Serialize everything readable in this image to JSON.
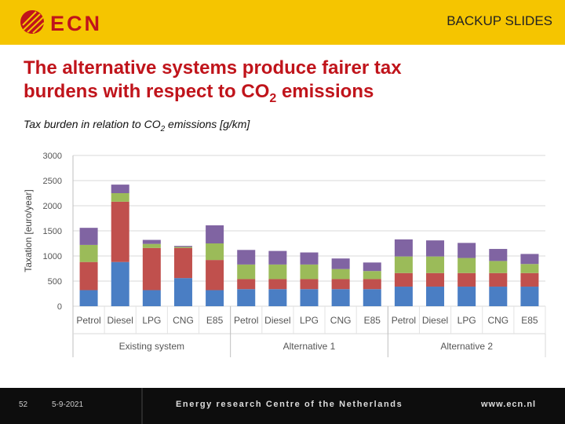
{
  "header": {
    "backup_label": "BACKUP SLIDES",
    "logo_text": "ECN"
  },
  "slide": {
    "title_line1": "The alternative systems produce fairer tax",
    "title_line2_pre": "burdens with respect to CO",
    "title_line2_sub": "2",
    "title_line2_post": " emissions",
    "subtitle_pre": "Tax burden in relation to CO",
    "subtitle_sub": "2",
    "subtitle_post": " emissions [g/km]"
  },
  "colors": {
    "blue": "#4a7ec4",
    "red": "#c0504d",
    "green": "#9bbb59",
    "purple": "#8064a2",
    "header": "#f5c500",
    "title": "#c0141b"
  },
  "chart_data": {
    "type": "bar",
    "stacked": true,
    "ylabel": "Taxation [euro/year]",
    "ylim": [
      0,
      3000
    ],
    "yticks": [
      0,
      500,
      1000,
      1500,
      2000,
      2500,
      3000
    ],
    "groups": [
      {
        "name": "Existing system",
        "categories": [
          "Petrol",
          "Diesel",
          "LPG",
          "CNG",
          "E85"
        ]
      },
      {
        "name": "Alternative 1",
        "categories": [
          "Petrol",
          "Diesel",
          "LPG",
          "CNG",
          "E85"
        ]
      },
      {
        "name": "Alternative 2",
        "categories": [
          "Petrol",
          "Diesel",
          "LPG",
          "CNG",
          "E85"
        ]
      }
    ],
    "series": [
      {
        "name": "blue",
        "color": "#4a7ec4",
        "values": [
          320,
          880,
          320,
          560,
          320,
          340,
          340,
          340,
          340,
          340,
          390,
          390,
          390,
          390,
          390
        ]
      },
      {
        "name": "red",
        "color": "#c0504d",
        "values": [
          560,
          1200,
          840,
          600,
          600,
          200,
          200,
          200,
          200,
          200,
          270,
          270,
          270,
          270,
          270
        ]
      },
      {
        "name": "green",
        "color": "#9bbb59",
        "values": [
          340,
          170,
          80,
          20,
          330,
          290,
          290,
          290,
          200,
          160,
          330,
          330,
          300,
          240,
          180
        ]
      },
      {
        "name": "purple",
        "color": "#8064a2",
        "values": [
          340,
          170,
          80,
          20,
          360,
          290,
          270,
          240,
          210,
          170,
          340,
          320,
          300,
          240,
          200
        ]
      }
    ]
  },
  "footer": {
    "slide_number": "52",
    "date": "5-9-2021",
    "org": "Energy research Centre of the Netherlands",
    "website": "www.ecn.nl"
  }
}
